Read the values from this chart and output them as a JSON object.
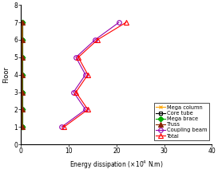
{
  "floors": [
    1,
    2,
    3,
    4,
    5,
    6,
    7
  ],
  "mega_column": [
    0.1,
    0.1,
    0.1,
    0.1,
    0.1,
    0.1,
    0.1
  ],
  "core_tube": [
    0.2,
    0.2,
    0.2,
    0.2,
    0.2,
    0.2,
    0.2
  ],
  "mega_brace": [
    0.3,
    0.3,
    0.3,
    0.3,
    0.3,
    0.35,
    0.35
  ],
  "truss": [
    0.25,
    0.25,
    0.25,
    0.25,
    0.25,
    0.3,
    0.3
  ],
  "coupling_beam": [
    8.5,
    13.5,
    11.0,
    13.5,
    11.5,
    15.5,
    20.5
  ],
  "total": [
    9.0,
    14.0,
    11.5,
    14.0,
    12.0,
    16.0,
    22.0
  ],
  "colors": {
    "mega_column": "#FFA500",
    "core_tube": "#000000",
    "mega_brace": "#00AA00",
    "truss": "#8B2500",
    "coupling_beam": "#9400AA",
    "total": "#FF0000"
  },
  "markers": {
    "mega_column": "x",
    "core_tube": "s",
    "mega_brace": "D",
    "truss": "^",
    "coupling_beam": "o",
    "total": "^"
  },
  "marker_filled": {
    "mega_column": false,
    "core_tube": false,
    "mega_brace": true,
    "truss": true,
    "coupling_beam": false,
    "total": false
  },
  "xlabel": "Energy dissipation (×10 N.m)",
  "ylabel": "Floor",
  "xlim": [
    0,
    40
  ],
  "ylim": [
    0,
    8
  ],
  "xticks": [
    0,
    10,
    20,
    30,
    40
  ],
  "yticks": [
    0,
    1,
    2,
    3,
    4,
    5,
    6,
    7,
    8
  ],
  "legend_labels": [
    "Mega column",
    "Core tube",
    "Mega brace",
    "Truss",
    "Coupling beam",
    "Total"
  ],
  "figsize": [
    2.73,
    2.17
  ],
  "dpi": 100
}
